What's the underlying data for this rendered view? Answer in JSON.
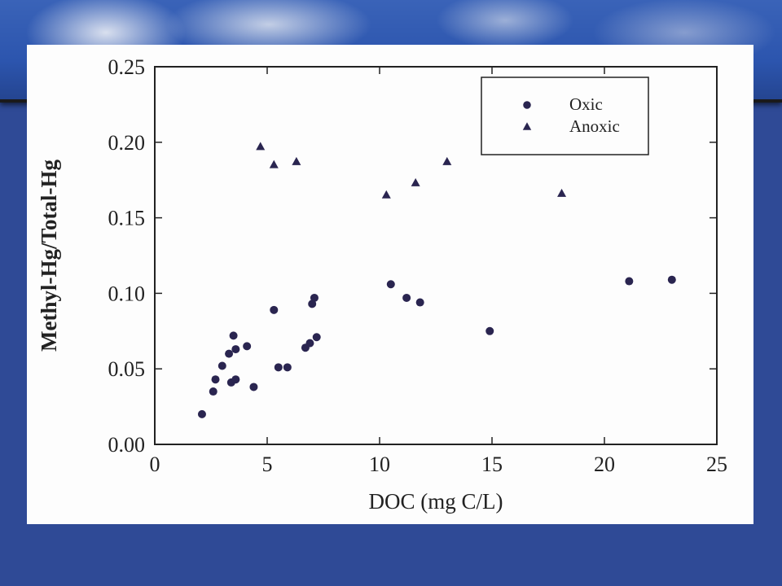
{
  "chart_data": {
    "type": "scatter",
    "title": "",
    "xlabel": "DOC (mg C/L)",
    "ylabel": "Methyl-Hg/Total-Hg",
    "xlim": [
      0,
      25
    ],
    "ylim": [
      0,
      0.25
    ],
    "xticks": [
      0,
      5,
      10,
      15,
      20,
      25
    ],
    "xtick_labels": [
      "0",
      "5",
      "10",
      "15",
      "20",
      "25"
    ],
    "yticks": [
      0,
      0.05,
      0.1,
      0.15,
      0.2,
      0.25
    ],
    "ytick_labels": [
      "0.00",
      "0.05",
      "0.10",
      "0.15",
      "0.20",
      "0.25"
    ],
    "grid": false,
    "legend_position": "top-right",
    "series": [
      {
        "name": "Oxic",
        "marker": "circle",
        "color": "#2a2550",
        "points": [
          [
            2.1,
            0.02
          ],
          [
            2.6,
            0.035
          ],
          [
            2.7,
            0.043
          ],
          [
            3.0,
            0.052
          ],
          [
            3.3,
            0.06
          ],
          [
            3.4,
            0.041
          ],
          [
            3.5,
            0.072
          ],
          [
            3.6,
            0.043
          ],
          [
            3.6,
            0.063
          ],
          [
            4.1,
            0.065
          ],
          [
            4.4,
            0.038
          ],
          [
            5.3,
            0.089
          ],
          [
            5.5,
            0.051
          ],
          [
            5.9,
            0.051
          ],
          [
            6.7,
            0.064
          ],
          [
            6.9,
            0.067
          ],
          [
            7.0,
            0.093
          ],
          [
            7.1,
            0.097
          ],
          [
            7.2,
            0.071
          ],
          [
            10.5,
            0.106
          ],
          [
            11.2,
            0.097
          ],
          [
            11.8,
            0.094
          ],
          [
            14.9,
            0.075
          ],
          [
            21.1,
            0.108
          ],
          [
            23.0,
            0.109
          ]
        ]
      },
      {
        "name": "Anoxic",
        "marker": "triangle",
        "color": "#2a2550",
        "points": [
          [
            4.7,
            0.197
          ],
          [
            5.3,
            0.185
          ],
          [
            6.3,
            0.187
          ],
          [
            10.3,
            0.165
          ],
          [
            11.6,
            0.173
          ],
          [
            13.0,
            0.187
          ],
          [
            18.1,
            0.166
          ]
        ]
      }
    ]
  }
}
